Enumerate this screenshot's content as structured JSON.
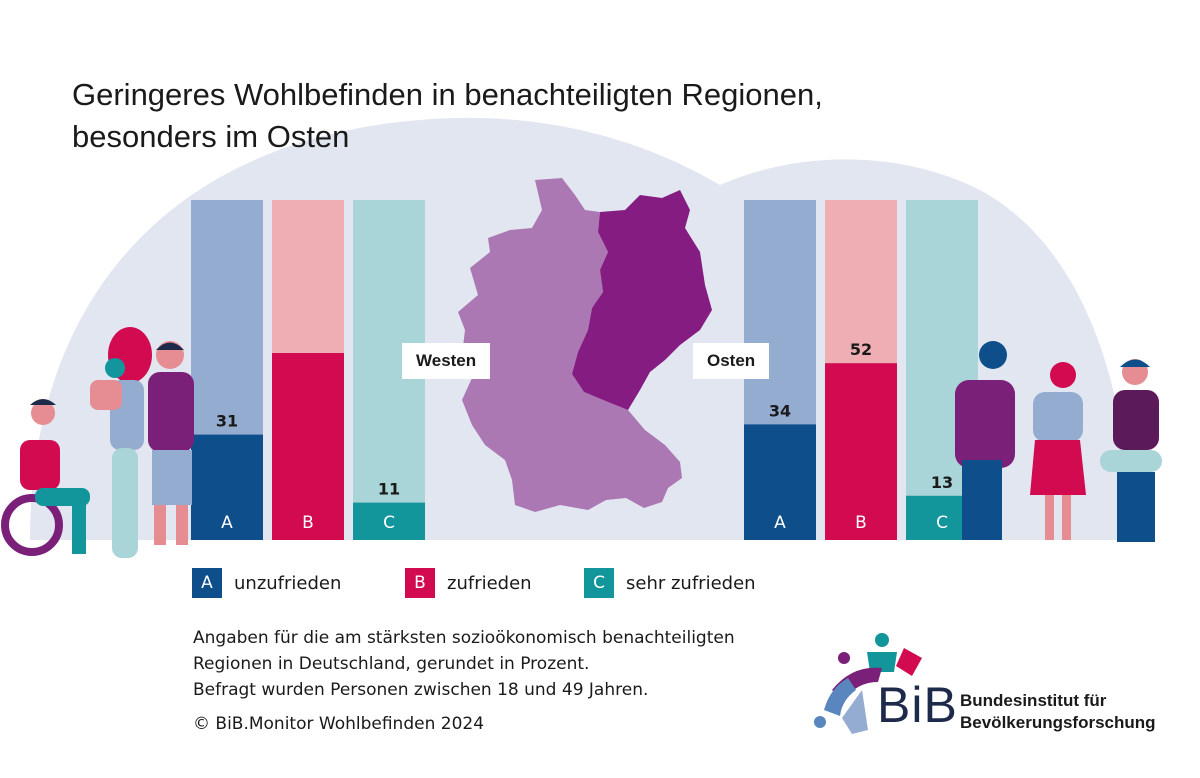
{
  "title_lines": [
    "Geringeres Wohlbefinden in benachteiligten Regionen,",
    "besonders im Osten"
  ],
  "colors": {
    "A": "#0e4e8a",
    "A_bg": "#94acd0",
    "B": "#d20a50",
    "B_bg": "#eeaeb4",
    "C": "#13959c",
    "C_bg": "#a9d4d8",
    "west_map": "#ab78b4",
    "east_map": "#841c82",
    "background_blob": "#e2e6f1"
  },
  "chart_data": [
    {
      "type": "bar",
      "region": "Westen",
      "categories": [
        "A",
        "B",
        "C"
      ],
      "values": [
        31,
        null,
        11
      ],
      "value_labels": [
        "31",
        "",
        "11"
      ],
      "ylim": [
        0,
        100
      ]
    },
    {
      "type": "bar",
      "region": "Osten",
      "categories": [
        "A",
        "B",
        "C"
      ],
      "values": [
        34,
        52,
        13
      ],
      "value_labels": [
        "34",
        "52",
        "13"
      ],
      "ylim": [
        0,
        100
      ]
    }
  ],
  "region_labels": {
    "west": "Westen",
    "east": "Osten"
  },
  "legend": [
    {
      "key": "A",
      "label": "unzufrieden"
    },
    {
      "key": "B",
      "label": "zufrieden"
    },
    {
      "key": "C",
      "label": "sehr zufrieden"
    }
  ],
  "notes": [
    "Angaben für die am stärksten sozioökonomisch benachteiligten",
    "Regionen in Deutschland, gerundet in Prozent.",
    "Befragt wurden Personen zwischen 18 und 49 Jahren."
  ],
  "copyright": "© BiB.Monitor Wohlbefinden 2024",
  "logo": {
    "abbr": "BiB",
    "name_lines": [
      "Bundesinstitut für",
      "Bevölkerungsforschung"
    ]
  }
}
